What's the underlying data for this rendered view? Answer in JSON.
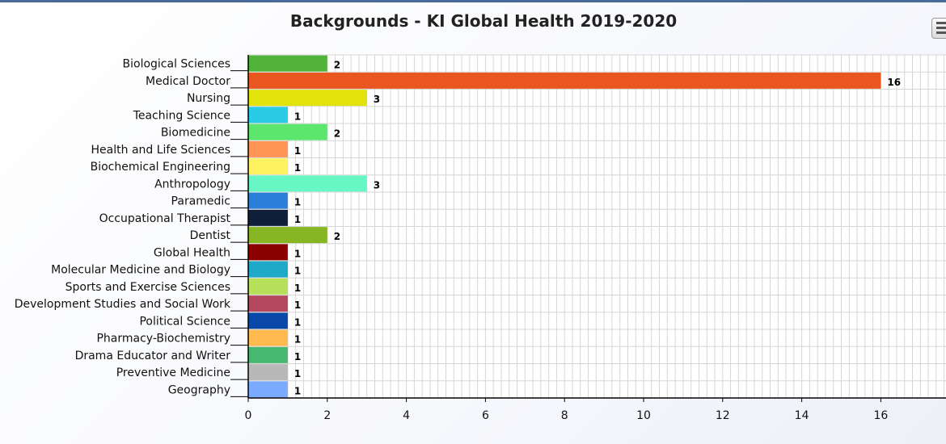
{
  "chart_data": {
    "type": "bar",
    "orientation": "horizontal",
    "title": "Backgrounds - KI Global Health 2019-2020",
    "xlabel": "",
    "ylabel": "",
    "xlim": [
      0,
      17.6
    ],
    "grid": true,
    "categories": [
      "Biological Sciences",
      "Medical Doctor",
      "Nursing",
      "Teaching Science",
      "Biomedicine",
      "Health and Life Sciences",
      "Biochemical Engineering",
      "Anthropology",
      "Paramedic",
      "Occupational Therapist",
      "Dentist",
      "Global Health",
      "Molecular Medicine and Biology",
      "Sports and Exercise Sciences",
      "Development Studies and Social Work",
      "Political Science",
      "Pharmacy-Biochemistry",
      "Drama Educator and Writer",
      "Preventive Medicine",
      "Geography"
    ],
    "values": [
      2,
      16,
      3,
      1,
      2,
      1,
      1,
      3,
      1,
      1,
      2,
      1,
      1,
      1,
      1,
      1,
      1,
      1,
      1,
      1
    ],
    "colors": [
      "#52b33a",
      "#ea561f",
      "#e1e30b",
      "#2acbe6",
      "#5de66e",
      "#ff9455",
      "#fff260",
      "#66f7c4",
      "#2b7fd8",
      "#0f1f3a",
      "#86b624",
      "#8b0000",
      "#1fa9c8",
      "#b7e05a",
      "#b3485f",
      "#0a48a8",
      "#ffb94f",
      "#48b870",
      "#b8b8b8",
      "#7aabff"
    ],
    "xticks": [
      "0",
      "2",
      "4",
      "6",
      "8",
      "10",
      "12",
      "14",
      "16"
    ]
  }
}
